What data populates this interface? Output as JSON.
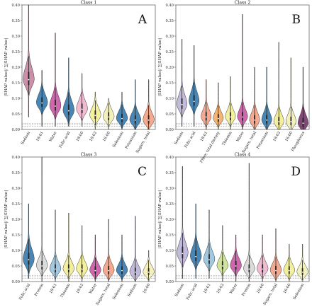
{
  "colors": {
    "pink": "#c98aa6",
    "blue": "#3f7fb0",
    "magenta": "#cc5fa8",
    "lightpink": "#f0b7d0",
    "yellow": "#f3ee97",
    "paleyellow": "#f2efb8",
    "lightblue": "#9ec6df",
    "salmon": "#f3a58a",
    "orange": "#f4b06a",
    "lavender": "#bfb6d8",
    "purple": "#7a3f6e",
    "peach": "#f4c6b0",
    "grey": "#d9d9d9",
    "green": "#cfe39a"
  },
  "chart_data": [
    {
      "type": "violin",
      "title": "Class 1",
      "letter": "A",
      "ylabel": "|SHAP value|/ ∑|SHAP value|",
      "ylim": [
        0,
        0.4
      ],
      "yticks": [
        "0.00",
        "0.05",
        "0.10",
        "0.15",
        "0.20",
        "0.25",
        "0.30",
        "0.35",
        "0.40"
      ],
      "reference_lines": [
        0.01,
        0.015,
        0.02
      ],
      "categories": [
        "Sodium",
        "18:01",
        "Water",
        "Folic acid",
        "18:00",
        "18:02",
        "16:00",
        "Selenium",
        "Potassium",
        "Sugars, total"
      ],
      "color_keys": [
        "pink",
        "blue",
        "magenta",
        "blue",
        "lightpink",
        "yellow",
        "paleyellow",
        "blue",
        "blue",
        "salmon"
      ],
      "medians": [
        0.16,
        0.085,
        0.075,
        0.06,
        0.065,
        0.045,
        0.04,
        0.035,
        0.03,
        0.03
      ],
      "min": [
        0.04,
        0.01,
        0.01,
        0.01,
        0.01,
        0.0,
        0.0,
        0.0,
        0.0,
        0.0
      ],
      "max": [
        0.4,
        0.19,
        0.31,
        0.23,
        0.18,
        0.12,
        0.1,
        0.12,
        0.16,
        0.16
      ],
      "spread": [
        0.025,
        0.018,
        0.02,
        0.02,
        0.018,
        0.016,
        0.015,
        0.015,
        0.015,
        0.016
      ]
    },
    {
      "type": "violin",
      "title": "Class 2",
      "letter": "B",
      "ylabel": "|SHAP value|/ ∑|SHAP value|",
      "ylim": [
        0,
        0.4
      ],
      "yticks": [
        "0.00",
        "0.05",
        "0.10",
        "0.15",
        "0.20",
        "0.25",
        "0.30",
        "0.35",
        "0.40"
      ],
      "reference_lines": [
        0.01,
        0.015,
        0.02
      ],
      "categories": [
        "Sodium",
        "Folic acid",
        "18:01",
        "Fiber, total dietary",
        "Thiamin",
        "Water",
        "Sugars, total",
        "Potassium",
        "18:02",
        "16:00",
        "Phosphorus"
      ],
      "color_keys": [
        "lavender",
        "blue",
        "salmon",
        "orange",
        "yellow",
        "magenta",
        "salmon",
        "blue",
        "yellow",
        "paleyellow",
        "purple"
      ],
      "medians": [
        0.08,
        0.09,
        0.04,
        0.035,
        0.04,
        0.04,
        0.03,
        0.03,
        0.025,
        0.025,
        0.02
      ],
      "min": [
        0.01,
        0.01,
        0.0,
        0.0,
        0.0,
        0.0,
        0.0,
        0.0,
        0.0,
        0.0,
        0.0
      ],
      "max": [
        0.29,
        0.27,
        0.16,
        0.15,
        0.17,
        0.37,
        0.2,
        0.2,
        0.28,
        0.23,
        0.2
      ],
      "spread": [
        0.02,
        0.02,
        0.016,
        0.014,
        0.015,
        0.016,
        0.016,
        0.016,
        0.015,
        0.016,
        0.017
      ]
    },
    {
      "type": "violin",
      "title": "Class 3",
      "letter": "C",
      "ylabel": "|SHAP value|/ ∑|SHAP value|",
      "ylim": [
        0,
        0.4
      ],
      "yticks": [
        "0.00",
        "0.05",
        "0.10",
        "0.15",
        "0.20",
        "0.25",
        "0.30",
        "0.35",
        "0.40"
      ],
      "reference_lines": [
        0.01,
        0.015,
        0.02
      ],
      "categories": [
        "Folic acid",
        "Protein",
        "18:01",
        "Thiamin",
        "18:02",
        "Water",
        "Sugars, total",
        "Selenium",
        "Sodium",
        "16:00"
      ],
      "color_keys": [
        "blue",
        "grey",
        "lightblue",
        "yellow",
        "yellow",
        "magenta",
        "salmon",
        "blue",
        "lavender",
        "paleyellow"
      ],
      "medians": [
        0.07,
        0.05,
        0.04,
        0.04,
        0.04,
        0.035,
        0.035,
        0.035,
        0.03,
        0.03
      ],
      "min": [
        0.01,
        0.0,
        0.0,
        0.0,
        0.0,
        0.0,
        0.0,
        0.0,
        0.0,
        0.0
      ],
      "max": [
        0.25,
        0.4,
        0.23,
        0.22,
        0.18,
        0.15,
        0.2,
        0.15,
        0.21,
        0.1
      ],
      "spread": [
        0.022,
        0.016,
        0.015,
        0.015,
        0.015,
        0.014,
        0.015,
        0.014,
        0.014,
        0.013
      ]
    },
    {
      "type": "violin",
      "title": "Class 4",
      "letter": "D",
      "ylabel": "|SHAP value|/ ∑|SHAP value|",
      "ylim": [
        0,
        0.4
      ],
      "yticks": [
        "0.00",
        "0.05",
        "0.10",
        "0.15",
        "0.20",
        "0.25",
        "0.30",
        "0.35",
        "0.40"
      ],
      "reference_lines": [
        0.01,
        0.015,
        0.02
      ],
      "categories": [
        "Sodium",
        "Folic acid",
        "18:01",
        "18:02",
        "Water",
        "Protein",
        "18:00",
        "Sugars, total",
        "16:00",
        "Selenium"
      ],
      "color_keys": [
        "lavender",
        "blue",
        "lightblue",
        "green",
        "magenta",
        "grey",
        "lightpink",
        "salmon",
        "yellow",
        "paleyellow"
      ],
      "medians": [
        0.09,
        0.08,
        0.07,
        0.05,
        0.05,
        0.04,
        0.04,
        0.035,
        0.035,
        0.03
      ],
      "min": [
        0.01,
        0.01,
        0.01,
        0.0,
        0.0,
        0.0,
        0.0,
        0.0,
        0.0,
        0.0
      ],
      "max": [
        0.37,
        0.25,
        0.23,
        0.18,
        0.15,
        0.38,
        0.15,
        0.17,
        0.12,
        0.12
      ],
      "spread": [
        0.022,
        0.02,
        0.018,
        0.015,
        0.016,
        0.015,
        0.015,
        0.015,
        0.014,
        0.013
      ]
    }
  ]
}
